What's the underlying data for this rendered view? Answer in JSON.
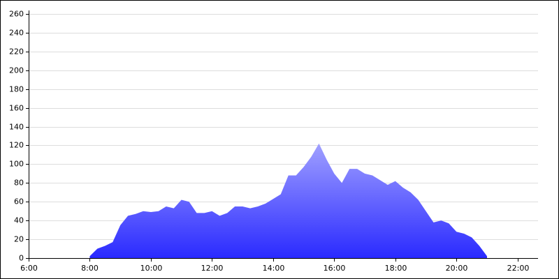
{
  "chart_data": {
    "type": "area",
    "x": [
      8,
      8.25,
      8.5,
      8.75,
      9,
      9.25,
      9.5,
      9.75,
      10,
      10.25,
      10.5,
      10.75,
      11,
      11.25,
      11.5,
      11.75,
      12,
      12.25,
      12.5,
      12.75,
      13,
      13.25,
      13.5,
      13.75,
      14,
      14.25,
      14.5,
      14.75,
      15,
      15.25,
      15.5,
      15.75,
      16,
      16.25,
      16.5,
      16.75,
      17,
      17.25,
      17.5,
      17.75,
      18,
      18.25,
      18.5,
      18.75,
      19,
      19.25,
      19.5,
      19.75,
      20,
      20.25,
      20.5,
      20.75,
      21
    ],
    "values": [
      2,
      10,
      13,
      17,
      35,
      45,
      47,
      50,
      49,
      50,
      55,
      53,
      62,
      60,
      48,
      48,
      50,
      45,
      48,
      55,
      55,
      53,
      55,
      58,
      63,
      68,
      88,
      88,
      97,
      108,
      122,
      105,
      90,
      80,
      95,
      95,
      90,
      88,
      83,
      78,
      82,
      75,
      70,
      62,
      50,
      38,
      40,
      37,
      28,
      26,
      22,
      13,
      2
    ],
    "color": "#2a2aff",
    "xlim": [
      6,
      22.67
    ],
    "xticks": [
      {
        "value": 6,
        "label": "6:00"
      },
      {
        "value": 8,
        "label": "8:00"
      },
      {
        "value": 10,
        "label": "10:00"
      },
      {
        "value": 12,
        "label": "12:00"
      },
      {
        "value": 14,
        "label": "14:00"
      },
      {
        "value": 16,
        "label": "16:00"
      },
      {
        "value": 18,
        "label": "18:00"
      },
      {
        "value": 20,
        "label": "20:00"
      },
      {
        "value": 22,
        "label": "22:00"
      }
    ],
    "ylim": [
      0,
      260
    ],
    "yticks": [
      0,
      20,
      40,
      60,
      80,
      100,
      120,
      140,
      160,
      180,
      200,
      220,
      240,
      260
    ],
    "grid": true
  }
}
